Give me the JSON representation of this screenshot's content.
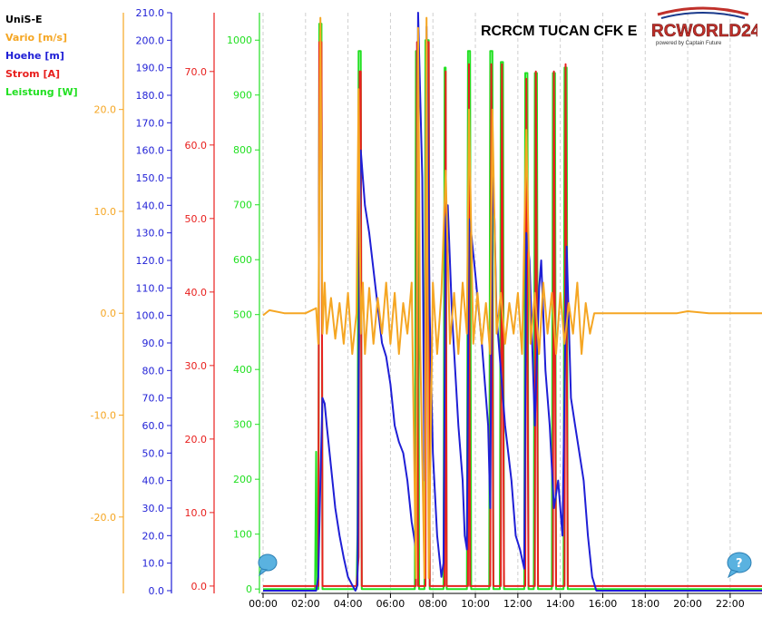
{
  "legend": {
    "title": "UniS-E",
    "items": [
      {
        "label": "Vario [m/s]",
        "color": "#f5a623"
      },
      {
        "label": "Hoehe [m]",
        "color": "#1f1fd6"
      },
      {
        "label": "Strom [A]",
        "color": "#e8201e"
      },
      {
        "label": "Leistung [W]",
        "color": "#22e022"
      }
    ]
  },
  "header": {
    "title": "RCRCM TUCAN CFK E"
  },
  "logo": {
    "text": "RCWORLD24",
    "subtext": "powered by Captain Future"
  },
  "chart_data": {
    "type": "line",
    "title": "RCRCM TUCAN CFK E",
    "x_range": [
      0,
      23.5
    ],
    "x_ticks": [
      "00:00",
      "02:00",
      "04:00",
      "06:00",
      "08:00",
      "10:00",
      "12:00",
      "14:00",
      "16:00",
      "18:00",
      "20:00",
      "22:00"
    ],
    "grid": true,
    "axes": {
      "vario": {
        "label": "Vario [m/s]",
        "color": "#f5a623",
        "range": [
          -27.5,
          29.5
        ],
        "ticks": [
          "20.0",
          "10.0",
          "0.0",
          "-10.0",
          "-20.0"
        ]
      },
      "hoehe": {
        "label": "Hoehe [m]",
        "color": "#1f1fd6",
        "range": [
          -1,
          210
        ],
        "ticks": [
          "210.0",
          "200.0",
          "190.0",
          "180.0",
          "170.0",
          "160.0",
          "150.0",
          "140.0",
          "130.0",
          "120.0",
          "110.0",
          "100.0",
          "90.0",
          "80.0",
          "70.0",
          "60.0",
          "50.0",
          "40.0",
          "30.0",
          "20.0",
          "10.0",
          "0.0"
        ]
      },
      "strom": {
        "label": "Strom [A]",
        "color": "#e8201e",
        "range": [
          -1,
          78
        ],
        "ticks": [
          "70.0",
          "60.0",
          "50.0",
          "40.0",
          "30.0",
          "20.0",
          "10.0",
          "0.0"
        ]
      },
      "leistung": {
        "label": "Leistung [W]",
        "color": "#22e022",
        "range": [
          -8,
          1050
        ],
        "ticks": [
          "1000",
          "900",
          "800",
          "700",
          "600",
          "500",
          "400",
          "300",
          "200",
          "100",
          "0"
        ]
      }
    },
    "series": [
      {
        "name": "Leistung [W]",
        "axis": "leistung",
        "color": "#22e022",
        "points": [
          [
            0,
            0
          ],
          [
            2.45,
            0
          ],
          [
            2.5,
            250
          ],
          [
            2.55,
            0
          ],
          [
            2.6,
            0
          ],
          [
            2.65,
            1030
          ],
          [
            2.75,
            1030
          ],
          [
            2.8,
            0
          ],
          [
            4.4,
            0
          ],
          [
            4.45,
            100
          ],
          [
            4.5,
            980
          ],
          [
            4.6,
            980
          ],
          [
            4.65,
            0
          ],
          [
            7.15,
            0
          ],
          [
            7.2,
            980
          ],
          [
            7.3,
            980
          ],
          [
            7.35,
            0
          ],
          [
            7.6,
            0
          ],
          [
            7.65,
            1000
          ],
          [
            7.8,
            1000
          ],
          [
            7.85,
            0
          ],
          [
            8.5,
            0
          ],
          [
            8.55,
            950
          ],
          [
            8.6,
            950
          ],
          [
            8.65,
            0
          ],
          [
            9.6,
            0
          ],
          [
            9.65,
            980
          ],
          [
            9.75,
            980
          ],
          [
            9.8,
            0
          ],
          [
            10.65,
            0
          ],
          [
            10.7,
            980
          ],
          [
            10.8,
            980
          ],
          [
            10.85,
            0
          ],
          [
            11.15,
            0
          ],
          [
            11.2,
            960
          ],
          [
            11.3,
            960
          ],
          [
            11.35,
            0
          ],
          [
            12.3,
            0
          ],
          [
            12.35,
            940
          ],
          [
            12.45,
            940
          ],
          [
            12.5,
            0
          ],
          [
            12.75,
            0
          ],
          [
            12.8,
            940
          ],
          [
            12.9,
            940
          ],
          [
            12.95,
            0
          ],
          [
            13.6,
            0
          ],
          [
            13.65,
            940
          ],
          [
            13.75,
            940
          ],
          [
            13.8,
            0
          ],
          [
            14.15,
            0
          ],
          [
            14.2,
            950
          ],
          [
            14.3,
            950
          ],
          [
            14.35,
            0
          ],
          [
            23.5,
            0
          ]
        ]
      },
      {
        "name": "Strom [A]",
        "axis": "strom",
        "color": "#e8201e",
        "points": [
          [
            0,
            0
          ],
          [
            2.6,
            0
          ],
          [
            2.65,
            74
          ],
          [
            2.75,
            74
          ],
          [
            2.8,
            0
          ],
          [
            4.4,
            0
          ],
          [
            4.5,
            4
          ],
          [
            4.55,
            70
          ],
          [
            4.6,
            70
          ],
          [
            4.65,
            0
          ],
          [
            7.2,
            0
          ],
          [
            7.25,
            74
          ],
          [
            7.3,
            0
          ],
          [
            7.65,
            0
          ],
          [
            7.7,
            74
          ],
          [
            7.8,
            74
          ],
          [
            7.85,
            0
          ],
          [
            8.55,
            0
          ],
          [
            8.6,
            70
          ],
          [
            8.65,
            0
          ],
          [
            9.65,
            0
          ],
          [
            9.7,
            71
          ],
          [
            9.75,
            0
          ],
          [
            10.7,
            0
          ],
          [
            10.75,
            71
          ],
          [
            10.85,
            0
          ],
          [
            11.2,
            0
          ],
          [
            11.25,
            71
          ],
          [
            11.35,
            0
          ],
          [
            12.35,
            0
          ],
          [
            12.4,
            69
          ],
          [
            12.5,
            0
          ],
          [
            12.8,
            0
          ],
          [
            12.85,
            70
          ],
          [
            12.95,
            0
          ],
          [
            13.65,
            0
          ],
          [
            13.7,
            70
          ],
          [
            13.8,
            0
          ],
          [
            14.2,
            0
          ],
          [
            14.25,
            71
          ],
          [
            14.35,
            0
          ],
          [
            23.5,
            0
          ]
        ]
      },
      {
        "name": "Hoehe [m]",
        "axis": "hoehe",
        "color": "#1f1fd6",
        "points": [
          [
            0,
            0
          ],
          [
            2.5,
            0
          ],
          [
            2.6,
            5
          ],
          [
            2.7,
            40
          ],
          [
            2.8,
            70
          ],
          [
            2.9,
            68
          ],
          [
            3.0,
            60
          ],
          [
            3.2,
            45
          ],
          [
            3.4,
            30
          ],
          [
            3.6,
            20
          ],
          [
            3.8,
            12
          ],
          [
            4.0,
            5
          ],
          [
            4.2,
            2
          ],
          [
            4.35,
            0
          ],
          [
            4.45,
            2
          ],
          [
            4.5,
            80
          ],
          [
            4.6,
            160
          ],
          [
            4.7,
            150
          ],
          [
            4.8,
            140
          ],
          [
            5.0,
            130
          ],
          [
            5.3,
            110
          ],
          [
            5.6,
            90
          ],
          [
            5.8,
            85
          ],
          [
            6.0,
            75
          ],
          [
            6.2,
            60
          ],
          [
            6.4,
            54
          ],
          [
            6.6,
            50
          ],
          [
            6.8,
            40
          ],
          [
            7.0,
            25
          ],
          [
            7.1,
            20
          ],
          [
            7.2,
            15
          ],
          [
            7.3,
            210
          ],
          [
            7.5,
            150
          ],
          [
            7.6,
            40
          ],
          [
            7.7,
            205
          ],
          [
            7.85,
            100
          ],
          [
            8.0,
            50
          ],
          [
            8.2,
            20
          ],
          [
            8.4,
            5
          ],
          [
            8.5,
            10
          ],
          [
            8.6,
            135
          ],
          [
            8.7,
            140
          ],
          [
            8.9,
            100
          ],
          [
            9.2,
            60
          ],
          [
            9.4,
            40
          ],
          [
            9.5,
            20
          ],
          [
            9.6,
            15
          ],
          [
            9.7,
            135
          ],
          [
            9.8,
            130
          ],
          [
            10.0,
            115
          ],
          [
            10.3,
            90
          ],
          [
            10.6,
            60
          ],
          [
            10.7,
            30
          ],
          [
            10.8,
            150
          ],
          [
            10.9,
            135
          ],
          [
            11.0,
            100
          ],
          [
            11.2,
            80
          ],
          [
            11.4,
            60
          ],
          [
            11.7,
            40
          ],
          [
            11.9,
            20
          ],
          [
            12.1,
            15
          ],
          [
            12.3,
            8
          ],
          [
            12.4,
            130
          ],
          [
            12.55,
            120
          ],
          [
            12.8,
            60
          ],
          [
            13.0,
            110
          ],
          [
            13.1,
            120
          ],
          [
            13.3,
            80
          ],
          [
            13.5,
            60
          ],
          [
            13.7,
            30
          ],
          [
            13.9,
            40
          ],
          [
            14.1,
            20
          ],
          [
            14.3,
            125
          ],
          [
            14.5,
            70
          ],
          [
            14.7,
            60
          ],
          [
            14.9,
            50
          ],
          [
            15.1,
            40
          ],
          [
            15.3,
            20
          ],
          [
            15.5,
            5
          ],
          [
            15.7,
            0
          ],
          [
            16,
            0
          ],
          [
            23.5,
            0
          ]
        ]
      },
      {
        "name": "Vario [m/s]",
        "axis": "vario",
        "color": "#f5a623",
        "points": [
          [
            0,
            -0.2
          ],
          [
            0.3,
            0.3
          ],
          [
            1,
            0
          ],
          [
            2,
            0
          ],
          [
            2.5,
            0.5
          ],
          [
            2.6,
            -3
          ],
          [
            2.7,
            29
          ],
          [
            2.8,
            -2
          ],
          [
            2.9,
            3
          ],
          [
            3.0,
            -2
          ],
          [
            3.2,
            1.5
          ],
          [
            3.4,
            -2.5
          ],
          [
            3.6,
            1
          ],
          [
            3.8,
            -3
          ],
          [
            4.0,
            2
          ],
          [
            4.2,
            -4
          ],
          [
            4.4,
            0
          ],
          [
            4.5,
            22
          ],
          [
            4.6,
            -2
          ],
          [
            4.7,
            3
          ],
          [
            4.8,
            -4
          ],
          [
            5.0,
            2.5
          ],
          [
            5.2,
            -3
          ],
          [
            5.4,
            1.5
          ],
          [
            5.6,
            -2
          ],
          [
            5.8,
            3
          ],
          [
            6.0,
            -3
          ],
          [
            6.2,
            2
          ],
          [
            6.4,
            -4
          ],
          [
            6.6,
            1
          ],
          [
            6.8,
            -2
          ],
          [
            7.0,
            3
          ],
          [
            7.2,
            -26
          ],
          [
            7.3,
            28
          ],
          [
            7.4,
            -3
          ],
          [
            7.6,
            -26
          ],
          [
            7.7,
            29
          ],
          [
            7.8,
            -26
          ],
          [
            8.0,
            3
          ],
          [
            8.2,
            -4
          ],
          [
            8.4,
            2
          ],
          [
            8.6,
            14
          ],
          [
            8.8,
            -3
          ],
          [
            9.0,
            2
          ],
          [
            9.2,
            -4
          ],
          [
            9.4,
            3
          ],
          [
            9.6,
            -2
          ],
          [
            9.7,
            20
          ],
          [
            9.9,
            -3
          ],
          [
            10.1,
            2
          ],
          [
            10.3,
            -3
          ],
          [
            10.5,
            1
          ],
          [
            10.7,
            -4
          ],
          [
            10.8,
            20
          ],
          [
            11.0,
            -2
          ],
          [
            11.2,
            2
          ],
          [
            11.4,
            -3
          ],
          [
            11.6,
            1
          ],
          [
            11.8,
            -2
          ],
          [
            12.0,
            2
          ],
          [
            12.2,
            -4
          ],
          [
            12.4,
            18
          ],
          [
            12.6,
            -3
          ],
          [
            12.8,
            2
          ],
          [
            13.0,
            -4
          ],
          [
            13.2,
            3
          ],
          [
            13.4,
            -2
          ],
          [
            13.6,
            2
          ],
          [
            13.8,
            -4
          ],
          [
            14.0,
            2
          ],
          [
            14.2,
            -3
          ],
          [
            14.4,
            1
          ],
          [
            14.6,
            -2
          ],
          [
            14.8,
            3
          ],
          [
            15.0,
            -4
          ],
          [
            15.2,
            1
          ],
          [
            15.4,
            -2
          ],
          [
            15.6,
            0
          ],
          [
            16,
            0
          ],
          [
            19.5,
            0
          ],
          [
            20,
            0.2
          ],
          [
            21,
            0
          ],
          [
            23.5,
            0
          ]
        ]
      }
    ]
  }
}
